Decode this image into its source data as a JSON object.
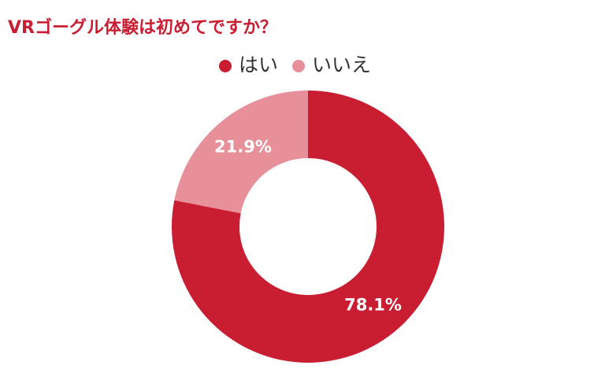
{
  "chart_data": {
    "type": "donut",
    "title": "VRゴーグル体験は初めてですか？",
    "categories": [
      "はい",
      "いいえ"
    ],
    "values": [
      78.1,
      21.9
    ],
    "value_labels": [
      "78.1%",
      "21.9%"
    ],
    "colors": [
      "#c91d32",
      "#e8909a"
    ]
  }
}
